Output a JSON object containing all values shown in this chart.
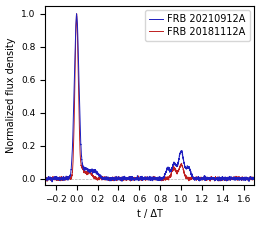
{
  "title": "",
  "xlabel": "t / ΔT",
  "ylabel": "Normalized flux density",
  "xlim": [
    -0.3,
    1.7
  ],
  "ylim": [
    -0.04,
    1.05
  ],
  "xticks": [
    -0.2,
    0.0,
    0.2,
    0.4,
    0.6,
    0.8,
    1.0,
    1.2,
    1.4,
    1.6
  ],
  "yticks": [
    0.0,
    0.2,
    0.4,
    0.6,
    0.8,
    1.0
  ],
  "color_blue": "#1f1fbf",
  "color_red": "#bf1f1f",
  "label_blue": "FRB 20210912A",
  "label_red": "FRB 20181112A",
  "legend_fontsize": 7,
  "axis_fontsize": 7,
  "tick_fontsize": 6.5,
  "linewidth": 0.7,
  "figsize": [
    2.6,
    2.25
  ],
  "dpi": 100
}
